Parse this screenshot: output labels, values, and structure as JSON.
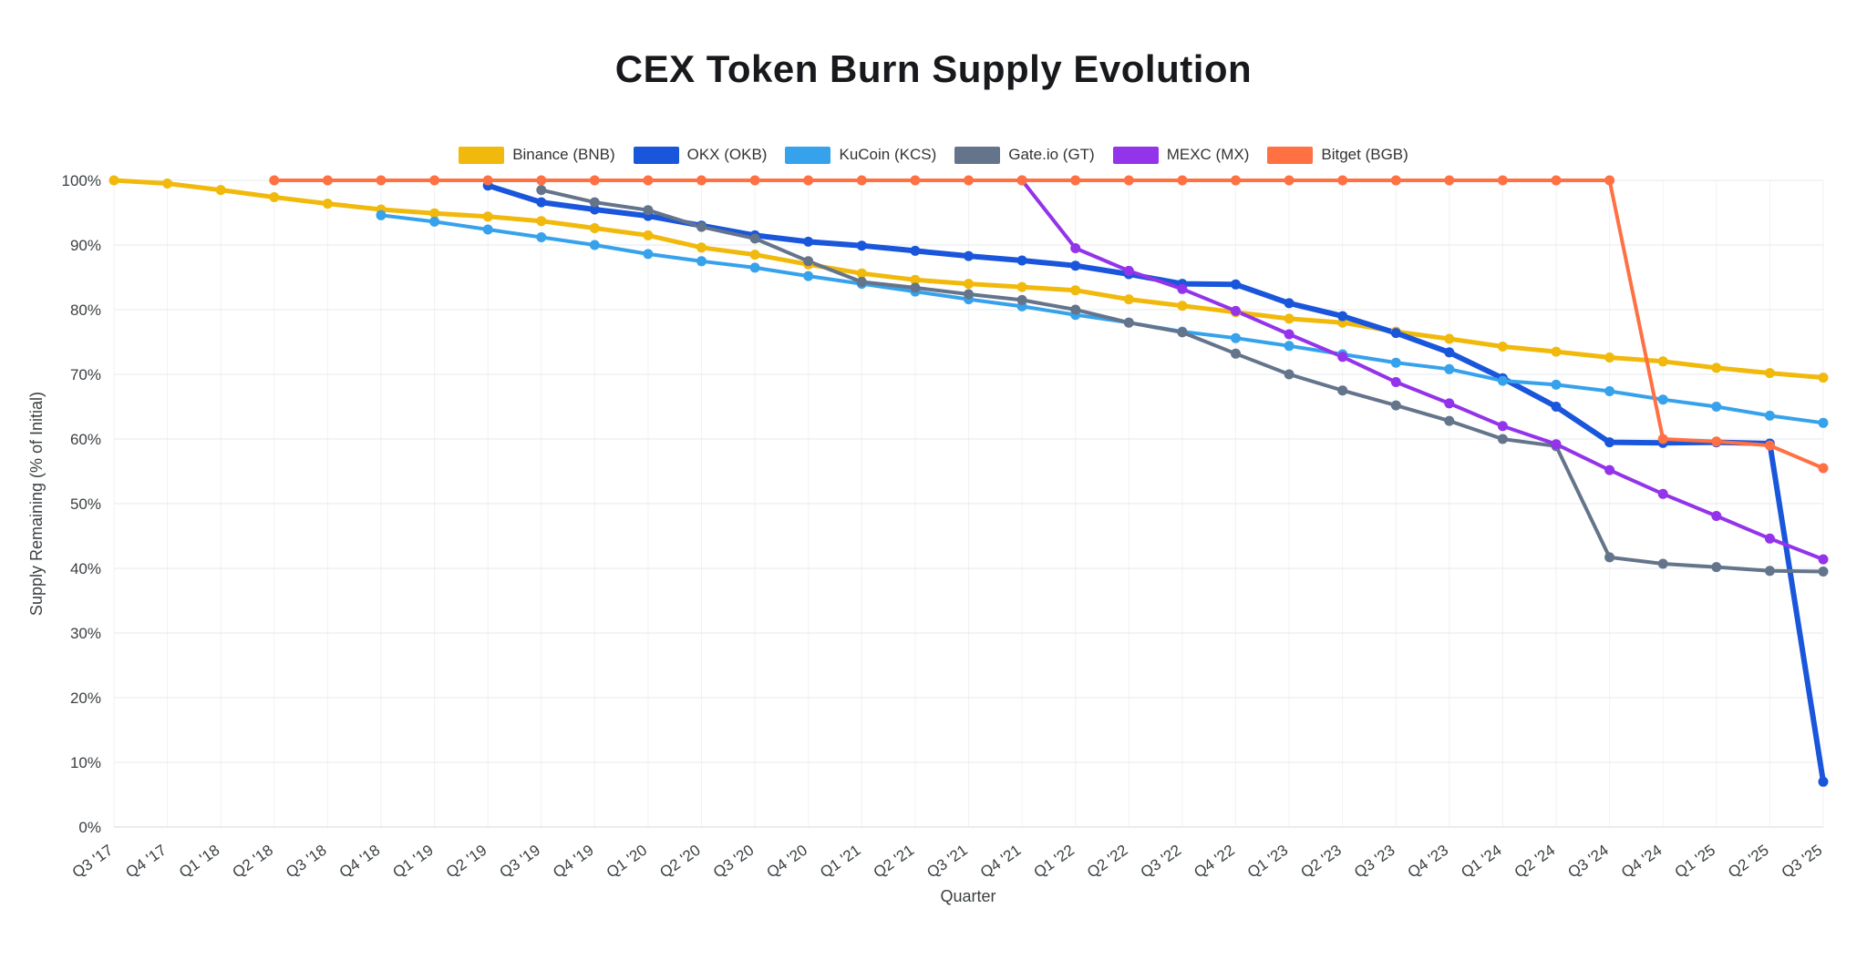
{
  "chart_data": {
    "type": "line",
    "title": "CEX Token Burn Supply Evolution",
    "xlabel": "Quarter",
    "ylabel": "Supply Remaining (% of Initial)",
    "ylim": [
      0,
      100
    ],
    "y_ticks": [
      "0%",
      "10%",
      "20%",
      "30%",
      "40%",
      "50%",
      "60%",
      "70%",
      "80%",
      "90%",
      "100%"
    ],
    "grid": true,
    "legend_position": "top",
    "background": "#ffffff",
    "categories": [
      "Q3 '17",
      "Q4 '17",
      "Q1 '18",
      "Q2 '18",
      "Q3 '18",
      "Q4 '18",
      "Q1 '19",
      "Q2 '19",
      "Q3 '19",
      "Q4 '19",
      "Q1 '20",
      "Q2 '20",
      "Q3 '20",
      "Q4 '20",
      "Q1 '21",
      "Q2 '21",
      "Q3 '21",
      "Q4 '21",
      "Q1 '22",
      "Q2 '22",
      "Q3 '22",
      "Q4 '22",
      "Q1 '23",
      "Q2 '23",
      "Q3 '23",
      "Q4 '23",
      "Q1 '24",
      "Q2 '24",
      "Q3 '24",
      "Q4 '24",
      "Q1 '25",
      "Q2 '25",
      "Q3 '25"
    ],
    "series": [
      {
        "name": "Binance (BNB)",
        "color": "#F0B90B",
        "line_width": 5,
        "values": [
          100,
          99.5,
          98.5,
          97.4,
          96.4,
          95.5,
          94.9,
          94.4,
          93.7,
          92.6,
          91.5,
          89.6,
          88.5,
          87.0,
          85.6,
          84.6,
          84.0,
          83.5,
          83.0,
          81.6,
          80.6,
          79.6,
          78.6,
          78.0,
          76.6,
          75.5,
          74.3,
          73.5,
          72.6,
          72.0,
          71.0,
          70.2,
          69.5
        ]
      },
      {
        "name": "OKX (OKB)",
        "color": "#1A56DB",
        "line_width": 6,
        "values": [
          null,
          null,
          null,
          null,
          null,
          null,
          null,
          99.2,
          96.6,
          95.5,
          94.5,
          93.0,
          91.5,
          90.5,
          89.9,
          89.1,
          88.3,
          87.6,
          86.8,
          85.5,
          84.0,
          83.9,
          81.0,
          79.0,
          76.4,
          73.4,
          69.4,
          65.0,
          59.5,
          59.4,
          59.5,
          59.3,
          7.0
        ]
      },
      {
        "name": "KuCoin (KCS)",
        "color": "#36A2EB",
        "line_width": 4,
        "values": [
          null,
          null,
          null,
          null,
          null,
          94.6,
          93.6,
          92.4,
          91.2,
          90.0,
          88.6,
          87.5,
          86.5,
          85.2,
          84.0,
          82.8,
          81.6,
          80.5,
          79.2,
          78.0,
          76.6,
          75.6,
          74.4,
          73.1,
          71.8,
          70.8,
          69.0,
          68.4,
          67.4,
          66.1,
          65.0,
          63.6,
          62.5
        ]
      },
      {
        "name": "Gate.io (GT)",
        "color": "#64748B",
        "line_width": 4,
        "values": [
          null,
          null,
          null,
          null,
          null,
          null,
          null,
          null,
          98.5,
          96.6,
          95.4,
          92.8,
          91.0,
          87.5,
          84.3,
          83.4,
          82.4,
          81.5,
          80.0,
          78.0,
          76.5,
          73.2,
          70.0,
          67.5,
          65.2,
          62.8,
          60.0,
          58.9,
          41.7,
          40.7,
          40.2,
          39.6,
          39.5
        ]
      },
      {
        "name": "MEXC (MX)",
        "color": "#9333EA",
        "line_width": 4,
        "values": [
          null,
          null,
          null,
          null,
          null,
          null,
          null,
          null,
          null,
          null,
          null,
          null,
          null,
          null,
          null,
          null,
          null,
          100,
          89.5,
          86.0,
          83.2,
          79.8,
          76.2,
          72.7,
          68.8,
          65.5,
          62.0,
          59.2,
          55.2,
          51.5,
          48.1,
          44.6,
          41.4
        ]
      },
      {
        "name": "Bitget (BGB)",
        "color": "#FF7043",
        "line_width": 4,
        "values": [
          null,
          null,
          null,
          100,
          100,
          100,
          100,
          100,
          100,
          100,
          100,
          100,
          100,
          100,
          100,
          100,
          100,
          100,
          100,
          100,
          100,
          100,
          100,
          100,
          100,
          100,
          100,
          100,
          100,
          60.0,
          59.6,
          59.0,
          55.5
        ]
      }
    ]
  }
}
